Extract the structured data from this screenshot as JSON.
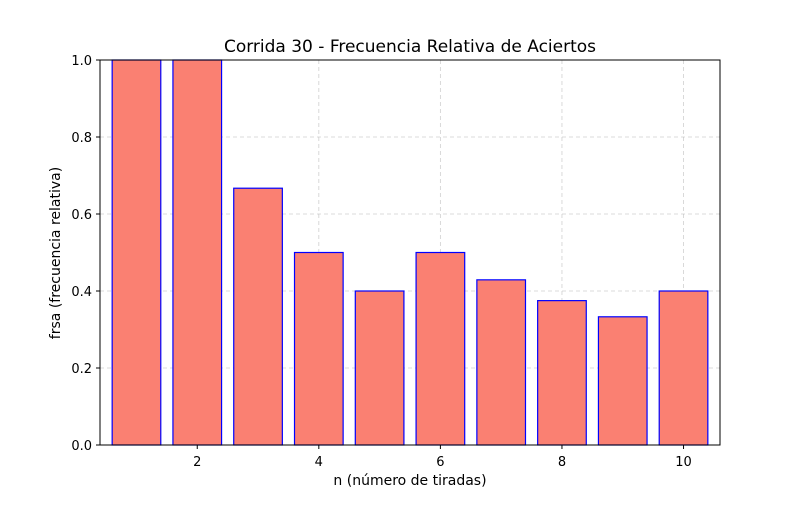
{
  "chart_data": {
    "type": "bar",
    "title": "Corrida 30 - Frecuencia Relativa de Aciertos",
    "xlabel": "n (número de tiradas)",
    "ylabel": "frsa (frecuencia relativa)",
    "x": [
      1,
      2,
      3,
      4,
      5,
      6,
      7,
      8,
      9,
      10
    ],
    "values": [
      1.0,
      1.0,
      0.667,
      0.5,
      0.4,
      0.5,
      0.429,
      0.375,
      0.333,
      0.4
    ],
    "xlim": [
      0.4,
      10.6
    ],
    "ylim": [
      0,
      1.0
    ],
    "xticks": [
      2,
      4,
      6,
      8,
      10
    ],
    "yticks": [
      0.0,
      0.2,
      0.4,
      0.6,
      0.8,
      1.0
    ],
    "ytick_labels": [
      "0.0",
      "0.2",
      "0.4",
      "0.6",
      "0.8",
      "1.0"
    ],
    "xtick_labels": [
      "2",
      "4",
      "6",
      "8",
      "10"
    ],
    "bar_width": 0.8,
    "grid": true,
    "colors": {
      "bar_fill": "#fa8072",
      "bar_edge": "#0000ff",
      "grid": "#b0b0b0",
      "axis": "#000000"
    }
  }
}
